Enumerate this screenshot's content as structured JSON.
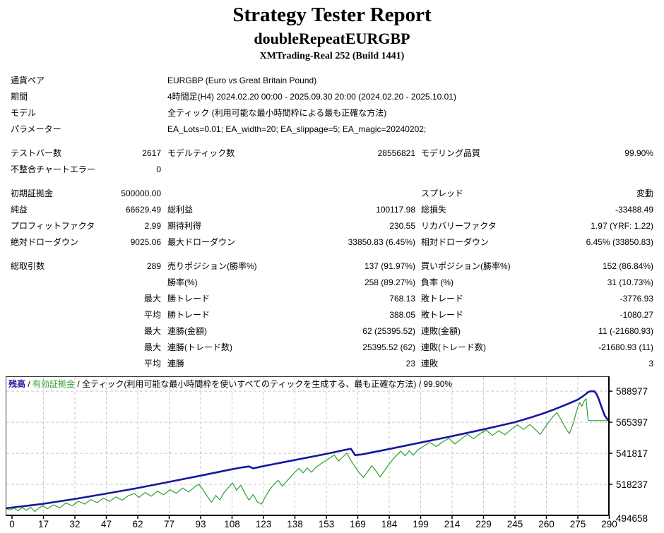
{
  "header": {
    "title": "Strategy Tester Report",
    "subtitle": "doubleRepeatEURGBP",
    "broker": "XMTrading-Real 252 (Build 1441)"
  },
  "report_rows": [
    {
      "cells": [
        "通貨ペア"
      ],
      "wide": "EURGBP (Euro vs Great Britain Pound)"
    },
    {
      "cells": [
        "期間"
      ],
      "wide": "4時間足(H4) 2024.02.20 00:00 - 2025.09.30 20:00 (2024.02.20 - 2025.10.01)"
    },
    {
      "cells": [
        "モデル"
      ],
      "wide": "全ティック (利用可能な最小時間枠による最も正確な方法)"
    },
    {
      "cells": [
        "パラメーター"
      ],
      "wide": "EA_Lots=0.01; EA_width=20; EA_slippage=5; EA_magic=20240202;"
    },
    {
      "spacer": true
    },
    {
      "cells": [
        "テストバー数",
        "2617",
        "モデルティック数",
        "28556821",
        "モデリング品質",
        "99.90%"
      ]
    },
    {
      "cells": [
        "不整合チャートエラー",
        "0",
        "",
        "",
        "",
        ""
      ]
    },
    {
      "spacer": true
    },
    {
      "cells": [
        "初期証拠金",
        "500000.00",
        "",
        "",
        "スプレッド",
        "変動"
      ]
    },
    {
      "cells": [
        "純益",
        "66629.49",
        "総利益",
        "100117.98",
        "総損失",
        "-33488.49"
      ]
    },
    {
      "cells": [
        "プロフィットファクタ",
        "2.99",
        "期待利得",
        "230.55",
        "リカバリーファクタ",
        "1.97 (YRF: 1.22)"
      ]
    },
    {
      "cells": [
        "絶対ドローダウン",
        "9025.06",
        "最大ドローダウン",
        "33850.83 (6.45%)",
        "相対ドローダウン",
        "6.45% (33850.83)"
      ]
    },
    {
      "spacer": true
    },
    {
      "cells": [
        "総取引数",
        "289",
        "売りポジション(勝率%)",
        "137 (91.97%)",
        "買いポジション(勝率%)",
        "152 (86.84%)"
      ]
    },
    {
      "cells": [
        "",
        "",
        "勝率(%)",
        "258 (89.27%)",
        "負率 (%)",
        "31 (10.73%)"
      ]
    },
    {
      "cells": [
        "",
        "最大",
        "勝トレード",
        "768.13",
        "敗トレード",
        "-3776.93"
      ]
    },
    {
      "cells": [
        "",
        "平均",
        "勝トレード",
        "388.05",
        "敗トレード",
        "-1080.27"
      ]
    },
    {
      "cells": [
        "",
        "最大",
        "連勝(金額)",
        "62 (25395.52)",
        "連敗(金額)",
        "11 (-21680.93)"
      ]
    },
    {
      "cells": [
        "",
        "最大",
        "連勝(トレード数)",
        "25395.52 (62)",
        "連敗(トレード数)",
        "-21680.93 (11)"
      ]
    },
    {
      "cells": [
        "",
        "平均",
        "連勝",
        "23",
        "連敗",
        "3"
      ]
    }
  ],
  "chart_data": {
    "type": "line",
    "legend": {
      "balance": "残高",
      "equity": "有効証拠金",
      "separator": "/",
      "note": "全ティック(利用可能な最小時間枠を使いすべてのティックを生成する、最も正確な方法)",
      "quality": "99.90%"
    },
    "xlabel": "",
    "ylabel": "",
    "x_ticks": [
      "0",
      "17",
      "32",
      "47",
      "62",
      "77",
      "93",
      "108",
      "123",
      "138",
      "153",
      "169",
      "184",
      "199",
      "214",
      "229",
      "245",
      "260",
      "275",
      "290"
    ],
    "y_gridlines": [
      588977,
      565397,
      541817,
      518237
    ],
    "y_axis_min_label": "494658",
    "x_range": [
      0,
      290
    ],
    "y_range": [
      494658,
      600300
    ],
    "grid": true,
    "legend_position": "top-left",
    "colors": {
      "balance": "#17179c",
      "equity": "#2f9e2f",
      "grid": "#c9c9c9",
      "axis": "#000000"
    },
    "series": [
      {
        "name": "残高",
        "points": [
          [
            0,
            500000
          ],
          [
            17,
            503200
          ],
          [
            32,
            506800
          ],
          [
            47,
            510800
          ],
          [
            62,
            515000
          ],
          [
            77,
            519600
          ],
          [
            93,
            524600
          ],
          [
            108,
            529400
          ],
          [
            114,
            531200
          ],
          [
            117,
            531800
          ],
          [
            119,
            530300
          ],
          [
            124,
            532100
          ],
          [
            138,
            536400
          ],
          [
            153,
            541000
          ],
          [
            163,
            544300
          ],
          [
            166,
            545200
          ],
          [
            168,
            540400
          ],
          [
            171,
            540900
          ],
          [
            184,
            544900
          ],
          [
            199,
            549800
          ],
          [
            214,
            554600
          ],
          [
            229,
            559700
          ],
          [
            239,
            563300
          ],
          [
            245,
            565500
          ],
          [
            252,
            568800
          ],
          [
            258,
            571800
          ],
          [
            264,
            575300
          ],
          [
            270,
            579100
          ],
          [
            275,
            582500
          ],
          [
            277,
            584600
          ],
          [
            279,
            586900
          ],
          [
            280,
            588300
          ],
          [
            281,
            588900
          ],
          [
            283,
            588900
          ],
          [
            284,
            587000
          ],
          [
            285,
            583500
          ],
          [
            286,
            579000
          ],
          [
            287,
            574500
          ],
          [
            288,
            570500
          ],
          [
            289,
            568200
          ],
          [
            290,
            566630
          ]
        ]
      },
      {
        "name": "有効証拠金",
        "points": [
          [
            0,
            500000
          ],
          [
            2,
            498700
          ],
          [
            4,
            500200
          ],
          [
            6,
            498100
          ],
          [
            8,
            500600
          ],
          [
            10,
            498500
          ],
          [
            12,
            500900
          ],
          [
            14,
            497600
          ],
          [
            16,
            500400
          ],
          [
            18,
            502000
          ],
          [
            20,
            499600
          ],
          [
            23,
            502600
          ],
          [
            26,
            500400
          ],
          [
            29,
            504100
          ],
          [
            32,
            501900
          ],
          [
            35,
            505400
          ],
          [
            38,
            503200
          ],
          [
            41,
            506700
          ],
          [
            44,
            504300
          ],
          [
            47,
            507800
          ],
          [
            50,
            505300
          ],
          [
            53,
            508700
          ],
          [
            56,
            506200
          ],
          [
            59,
            509600
          ],
          [
            62,
            511200
          ],
          [
            64,
            508300
          ],
          [
            67,
            512000
          ],
          [
            70,
            509200
          ],
          [
            73,
            513000
          ],
          [
            76,
            510300
          ],
          [
            79,
            514200
          ],
          [
            82,
            511400
          ],
          [
            85,
            515400
          ],
          [
            88,
            512400
          ],
          [
            91,
            516500
          ],
          [
            93,
            518200
          ],
          [
            95,
            513600
          ],
          [
            97,
            509000
          ],
          [
            99,
            504600
          ],
          [
            101,
            509800
          ],
          [
            103,
            506400
          ],
          [
            105,
            512000
          ],
          [
            107,
            515600
          ],
          [
            109,
            519200
          ],
          [
            111,
            513800
          ],
          [
            113,
            517600
          ],
          [
            115,
            511400
          ],
          [
            117,
            506300
          ],
          [
            119,
            510400
          ],
          [
            121,
            504900
          ],
          [
            123,
            503200
          ],
          [
            125,
            509300
          ],
          [
            127,
            514300
          ],
          [
            129,
            518300
          ],
          [
            131,
            521300
          ],
          [
            133,
            516900
          ],
          [
            135,
            520400
          ],
          [
            137,
            523900
          ],
          [
            139,
            527400
          ],
          [
            141,
            530400
          ],
          [
            143,
            526900
          ],
          [
            145,
            530700
          ],
          [
            147,
            527400
          ],
          [
            149,
            530900
          ],
          [
            152,
            534300
          ],
          [
            155,
            537400
          ],
          [
            158,
            540400
          ],
          [
            160,
            535900
          ],
          [
            162,
            538900
          ],
          [
            164,
            541900
          ],
          [
            166,
            536400
          ],
          [
            168,
            531400
          ],
          [
            170,
            526900
          ],
          [
            172,
            523400
          ],
          [
            174,
            527900
          ],
          [
            176,
            532400
          ],
          [
            178,
            528400
          ],
          [
            180,
            523900
          ],
          [
            182,
            528400
          ],
          [
            184,
            532900
          ],
          [
            186,
            536900
          ],
          [
            188,
            540400
          ],
          [
            190,
            543400
          ],
          [
            192,
            539900
          ],
          [
            194,
            543700
          ],
          [
            196,
            540400
          ],
          [
            198,
            544200
          ],
          [
            201,
            547200
          ],
          [
            204,
            550100
          ],
          [
            207,
            546900
          ],
          [
            210,
            550400
          ],
          [
            213,
            553100
          ],
          [
            216,
            548900
          ],
          [
            219,
            552700
          ],
          [
            222,
            556100
          ],
          [
            225,
            552900
          ],
          [
            228,
            556700
          ],
          [
            231,
            559400
          ],
          [
            234,
            555400
          ],
          [
            237,
            558900
          ],
          [
            240,
            555900
          ],
          [
            243,
            559900
          ],
          [
            246,
            563400
          ],
          [
            249,
            559900
          ],
          [
            252,
            563700
          ],
          [
            255,
            559400
          ],
          [
            257,
            556100
          ],
          [
            259,
            560900
          ],
          [
            261,
            565400
          ],
          [
            263,
            569400
          ],
          [
            265,
            572700
          ],
          [
            267,
            567400
          ],
          [
            269,
            561400
          ],
          [
            271,
            556700
          ],
          [
            273,
            565000
          ],
          [
            274,
            571400
          ],
          [
            275,
            576400
          ],
          [
            276,
            580400
          ],
          [
            277,
            577400
          ],
          [
            278,
            581400
          ],
          [
            279,
            583300
          ],
          [
            280,
            567000
          ],
          [
            281,
            566630
          ],
          [
            290,
            566630
          ]
        ]
      }
    ]
  }
}
